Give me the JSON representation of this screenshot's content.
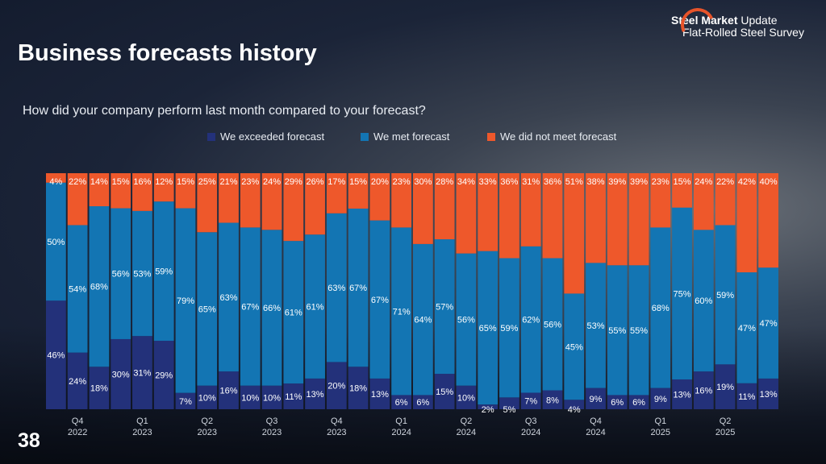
{
  "slide": {
    "title": "Business forecasts history",
    "page_number": "38",
    "logo": {
      "line1_bold": "Steel Market",
      "line1_rest": " Update",
      "line2": "Flat-Rolled Steel Survey"
    }
  },
  "colors": {
    "exceeded": "#23317a",
    "met": "#1375b3",
    "not_met": "#ee582b"
  },
  "chart_data": {
    "type": "bar",
    "stacked": true,
    "normalized": true,
    "title": "How did your company perform last month compared to your forecast?",
    "legend": [
      "We exceeded forecast",
      "We met forecast",
      "We did not meet forecast"
    ],
    "legend_position": "top",
    "ylim": [
      0,
      100
    ],
    "quarter_ticks": [
      {
        "bar": 1,
        "q": "Q4",
        "y": "2022"
      },
      {
        "bar": 4,
        "q": "Q1",
        "y": "2023"
      },
      {
        "bar": 7,
        "q": "Q2",
        "y": "2023"
      },
      {
        "bar": 10,
        "q": "Q3",
        "y": "2023"
      },
      {
        "bar": 13,
        "q": "Q4",
        "y": "2023"
      },
      {
        "bar": 16,
        "q": "Q1",
        "y": "2024"
      },
      {
        "bar": 19,
        "q": "Q2",
        "y": "2024"
      },
      {
        "bar": 22,
        "q": "Q3",
        "y": "2024"
      },
      {
        "bar": 25,
        "q": "Q4",
        "y": "2024"
      },
      {
        "bar": 28,
        "q": "Q1",
        "y": "2025"
      },
      {
        "bar": 31,
        "q": "Q2",
        "y": "2025"
      }
    ],
    "series": [
      {
        "name": "We exceeded forecast",
        "values": [
          46,
          24,
          18,
          30,
          31,
          29,
          7,
          10,
          16,
          10,
          10,
          11,
          13,
          20,
          18,
          13,
          6,
          6,
          15,
          10,
          2,
          5,
          7,
          8,
          4,
          9,
          6,
          6,
          9,
          13,
          16,
          19,
          11,
          13
        ]
      },
      {
        "name": "We met forecast",
        "values": [
          50,
          54,
          68,
          56,
          53,
          59,
          79,
          65,
          63,
          67,
          66,
          61,
          61,
          63,
          67,
          67,
          71,
          64,
          57,
          56,
          65,
          59,
          62,
          56,
          45,
          53,
          55,
          55,
          68,
          75,
          60,
          59,
          47,
          47
        ]
      },
      {
        "name": "We did not meet forecast",
        "values": [
          4,
          22,
          14,
          15,
          16,
          12,
          15,
          25,
          21,
          23,
          24,
          29,
          26,
          17,
          15,
          20,
          23,
          30,
          28,
          34,
          33,
          36,
          31,
          36,
          51,
          38,
          39,
          39,
          23,
          15,
          24,
          22,
          42,
          40
        ]
      }
    ]
  }
}
